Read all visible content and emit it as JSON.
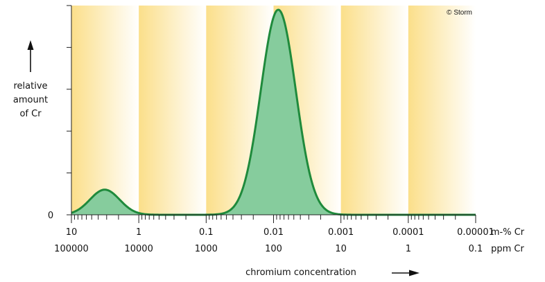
{
  "chart_data": {
    "type": "area",
    "x_scale": "log-reversed",
    "x_range_mass_percent": [
      10,
      1e-05
    ],
    "x_primary": {
      "label": "m-% Cr",
      "ticks": [
        "10",
        "1",
        "0.1",
        "0.01",
        "0.001",
        "0.0001",
        "0.00001"
      ]
    },
    "x_secondary": {
      "label": "ppm Cr",
      "ticks": [
        "100000",
        "10000",
        "1000",
        "100",
        "10",
        "1",
        "0.1"
      ]
    },
    "xlabel": "chromium concentration",
    "ylabel": [
      "relative",
      "amount",
      "of Cr"
    ],
    "y_zero_label": "0",
    "ylim": [
      0,
      1
    ],
    "credit": "© Storm",
    "series": [
      {
        "color": "#1f8a3c",
        "fill": "#86cc9d",
        "peaks": [
          {
            "center_mass_percent": 3.2,
            "relative_height": 0.12
          },
          {
            "center_mass_percent": 0.0085,
            "relative_height": 0.98
          }
        ]
      }
    ],
    "band_colors": [
      "#fbdf8a",
      "#ffffff"
    ]
  }
}
